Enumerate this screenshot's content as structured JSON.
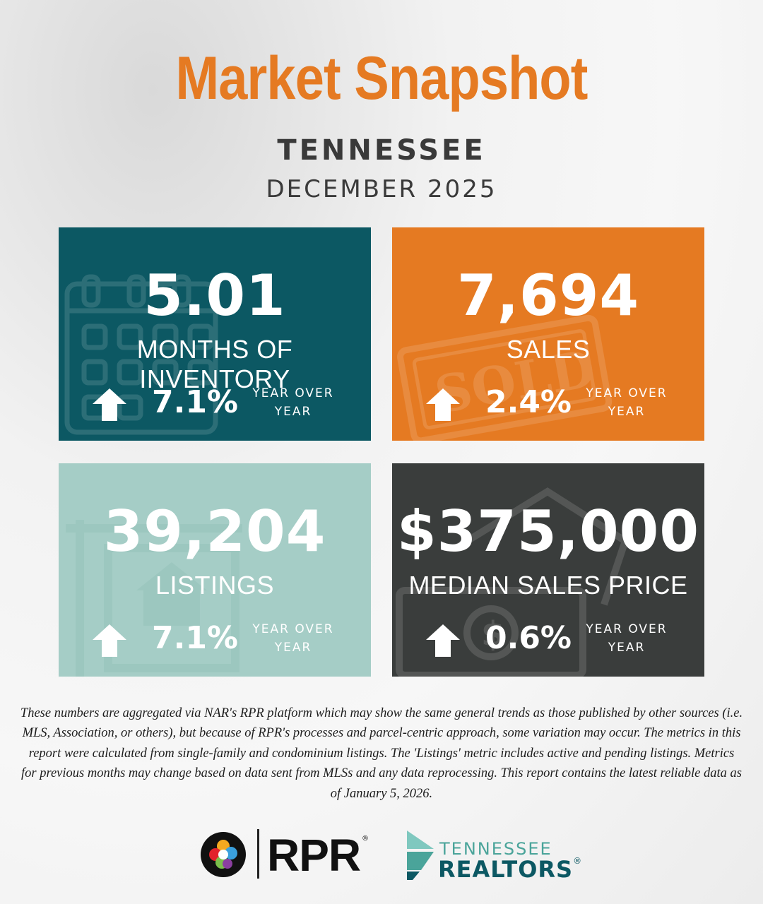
{
  "header": {
    "title": "Market Snapshot",
    "state": "TENNESSEE",
    "month": "DECEMBER 2025"
  },
  "cards": [
    {
      "value": "5.01",
      "label": "MONTHS OF INVENTORY",
      "change": "7.1%",
      "direction": "up",
      "yoy_line1": "YEAR OVER",
      "yoy_line2": "YEAR",
      "color": "#0c5863",
      "icon": "calendar-icon"
    },
    {
      "value": "7,694",
      "label": "SALES",
      "change": "2.4%",
      "direction": "up",
      "yoy_line1": "YEAR OVER",
      "yoy_line2": "YEAR",
      "color": "#e57a22",
      "icon": "sold-stamp-icon"
    },
    {
      "value": "39,204",
      "label": "LISTINGS",
      "change": "7.1%",
      "direction": "up",
      "yoy_line1": "YEAR OVER",
      "yoy_line2": "YEAR",
      "color": "#a5cdc6",
      "icon": "for-sale-sign-icon"
    },
    {
      "value": "$375,000",
      "label": "MEDIAN SALES PRICE",
      "change": "0.6%",
      "direction": "up",
      "yoy_line1": "YEAR OVER",
      "yoy_line2": "YEAR",
      "color": "#3a3d3c",
      "icon": "money-house-icon"
    }
  ],
  "disclaimer": "These numbers are aggregated via NAR's RPR platform which may show the same general trends as those published by other sources (i.e. MLS, Association, or others), but because of RPR's processes and parcel-centric approach, some variation may occur. The metrics in this report were calculated from single-family and condominium listings. The 'Listings' metric includes active and pending listings. Metrics for previous months may change based on data sent from MLSs and any data reprocessing. This report contains the latest reliable data as of January 5, 2026.",
  "logos": {
    "rpr_text": "RPR",
    "rpr_reg": "®",
    "tn_top": "TENNESSEE",
    "tn_bottom": "REALTORS",
    "tn_reg": "®"
  },
  "colors": {
    "accent": "#e57a22",
    "teal": "#0c5863",
    "mint": "#a5cdc6",
    "charcoal": "#3a3d3c"
  }
}
